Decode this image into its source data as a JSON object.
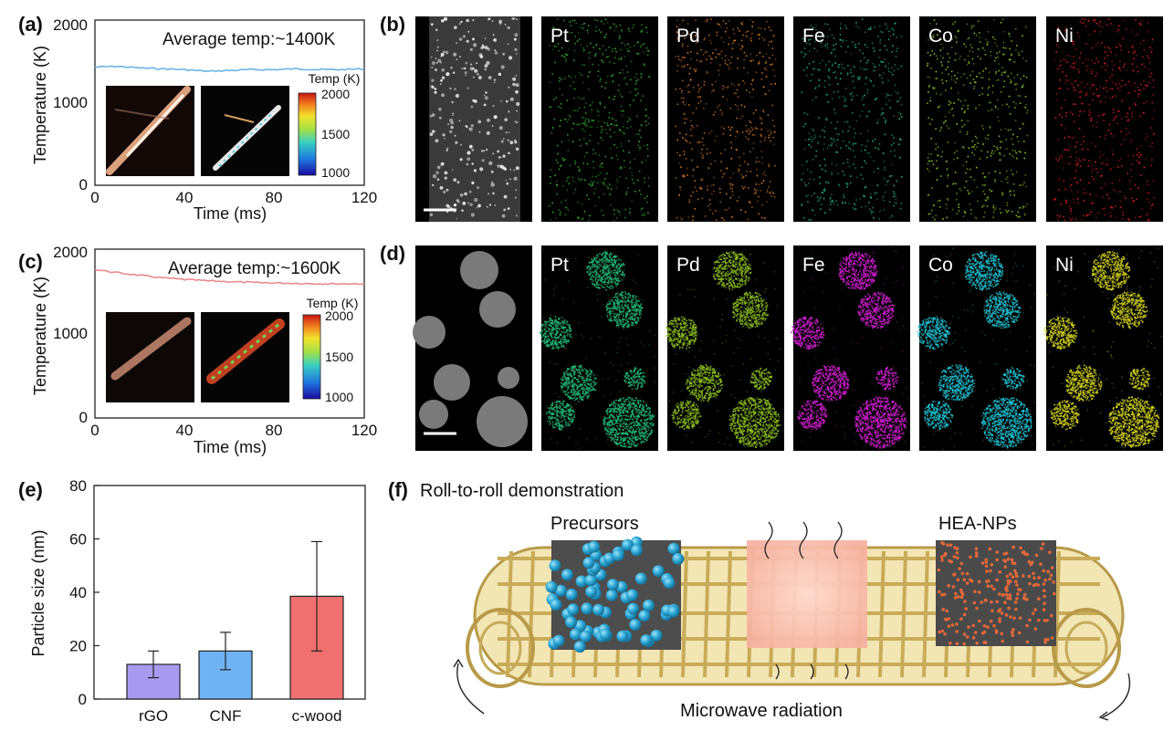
{
  "panels": {
    "a": {
      "label": "(a)",
      "annotation": "Average temp:~1400K",
      "xlabel": "Time (ms)",
      "ylabel": "Temperature (K)",
      "xticks": [
        "0",
        "40",
        "80",
        "120"
      ],
      "yticks": [
        "0",
        "1000",
        "2000"
      ],
      "colorbar_title": "Temp (K)",
      "colorbar_ticks": [
        "2000",
        "1500",
        "1000"
      ],
      "line_color": "#6ab4e6"
    },
    "b": {
      "label": "(b)",
      "elements": [
        "Pt",
        "Pd",
        "Fe",
        "Co",
        "Ni"
      ],
      "colors": [
        "#2fb52f",
        "#e07a1e",
        "#1fb58a",
        "#8ccc1e",
        "#e01e1e"
      ]
    },
    "c": {
      "label": "(c)",
      "annotation": "Average temp:~1600K",
      "xlabel": "Time (ms)",
      "ylabel": "Temperature (K)",
      "xticks": [
        "0",
        "40",
        "80",
        "120"
      ],
      "yticks": [
        "0",
        "1000",
        "2000"
      ],
      "colorbar_title": "Temp (K)",
      "colorbar_ticks": [
        "2000",
        "1500",
        "1000"
      ],
      "line_color": "#e88a8a"
    },
    "d": {
      "label": "(d)",
      "elements": [
        "Pt",
        "Pd",
        "Fe",
        "Co",
        "Ni"
      ],
      "colors": [
        "#22c07a",
        "#8fc21e",
        "#d81ed8",
        "#1ec8d8",
        "#d8d81e"
      ]
    },
    "e": {
      "label": "(e)",
      "ylabel": "Particle size (nm)",
      "yticks": [
        "0",
        "20",
        "40",
        "60",
        "80"
      ]
    },
    "f": {
      "label": "(f)",
      "title": "Roll-to-roll demonstration",
      "precursors": "Precursors",
      "hea": "HEA-NPs",
      "microwave": "Microwave radiation"
    }
  },
  "chart_data": [
    {
      "type": "line",
      "title": "",
      "annotation": "Average temp:~1400K",
      "xlabel": "Time (ms)",
      "ylabel": "Temperature (K)",
      "xlim": [
        0,
        120
      ],
      "ylim": [
        0,
        2000
      ],
      "series": [
        {
          "x": [
            0,
            10,
            20,
            30,
            40,
            50,
            60,
            70,
            80,
            90,
            100,
            110,
            120
          ],
          "y": [
            1430,
            1440,
            1420,
            1410,
            1400,
            1380,
            1390,
            1400,
            1400,
            1410,
            1400,
            1400,
            1410
          ]
        }
      ]
    },
    {
      "type": "line",
      "title": "",
      "annotation": "Average temp:~1600K",
      "xlabel": "Time (ms)",
      "ylabel": "Temperature (K)",
      "xlim": [
        0,
        120
      ],
      "ylim": [
        0,
        2000
      ],
      "series": [
        {
          "x": [
            0,
            10,
            20,
            30,
            40,
            50,
            60,
            70,
            80,
            90,
            100,
            110,
            120
          ],
          "y": [
            1760,
            1720,
            1690,
            1660,
            1640,
            1625,
            1615,
            1605,
            1600,
            1595,
            1590,
            1590,
            1590
          ]
        }
      ]
    },
    {
      "type": "bar",
      "title": "",
      "xlabel": "",
      "ylabel": "Particle size (nm)",
      "ylim": [
        0,
        80
      ],
      "categories": [
        "rGO",
        "CNF",
        "c-wood"
      ],
      "values": [
        13,
        18,
        38.5
      ],
      "errors": [
        5,
        7,
        20.5
      ],
      "colors": [
        "#a89af0",
        "#6fb3f5",
        "#f07070"
      ]
    }
  ]
}
